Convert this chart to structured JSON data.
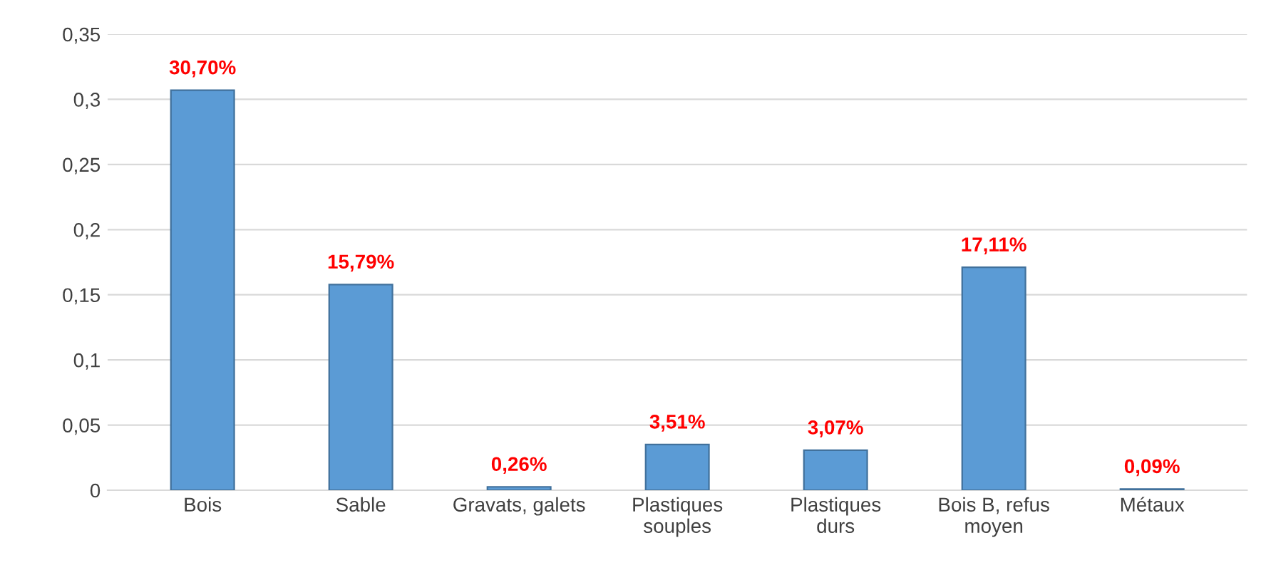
{
  "chart_data": {
    "type": "bar",
    "categories": [
      "Bois",
      "Sable",
      "Gravats, galets",
      "Plastiques\nsouples",
      "Plastiques\ndurs",
      "Bois B, refus\nmoyen",
      "Métaux"
    ],
    "values": [
      0.307,
      0.1579,
      0.0026,
      0.0351,
      0.0307,
      0.1711,
      0.0009
    ],
    "value_labels": [
      "30,70%",
      "15,79%",
      "0,26%",
      "3,51%",
      "3,07%",
      "17,11%",
      "0,09%"
    ],
    "color": "#5b9bd5",
    "ylim": [
      0,
      0.35
    ],
    "yticks": [
      0,
      {
        "value": 0.05,
        "label": "0,05"
      },
      {
        "value": 0.1,
        "label": "0,1"
      },
      {
        "value": 0.15,
        "label": "0,15"
      },
      {
        "value": 0.2,
        "label": "0,2"
      },
      {
        "value": 0.25,
        "label": "0,25"
      },
      {
        "value": 0.3,
        "label": "0,3"
      },
      {
        "value": 0.35,
        "label": "0,35"
      }
    ],
    "grid": "y",
    "legend": false
  }
}
